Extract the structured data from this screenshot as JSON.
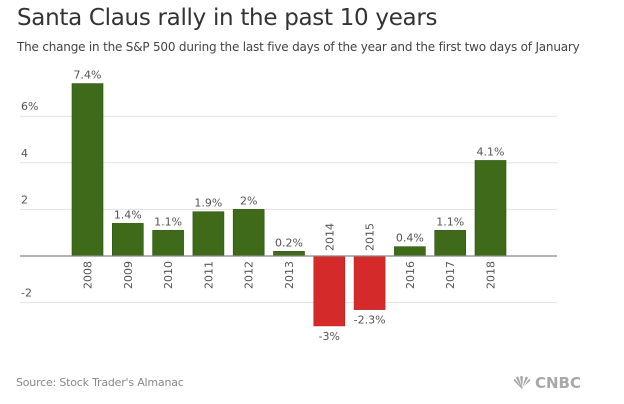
{
  "header": {
    "title": "Santa Claus rally in the past 10 years",
    "subtitle": "The change in the S&P 500 during the last five days of the year and the first two days of January"
  },
  "footer": {
    "source": "Source: Stock Trader's Almanac",
    "logo_text": "CNBC",
    "logo_icon": "nbc-peacock-icon"
  },
  "colors": {
    "positive": "#3f6a1a",
    "negative": "#d42a2a",
    "grid": "#e3e3e3",
    "axis": "#888888"
  },
  "chart_data": {
    "type": "bar",
    "title": "Santa Claus rally in the past 10 years",
    "subtitle": "The change in the S&P 500 during the last five days of the year and the first two days of January",
    "xlabel": "",
    "ylabel": "",
    "categories": [
      "2008",
      "2009",
      "2010",
      "2011",
      "2012",
      "2013",
      "2014",
      "2015",
      "2016",
      "2017",
      "2018"
    ],
    "values": [
      7.4,
      1.4,
      1.1,
      1.9,
      2.0,
      0.2,
      -3.0,
      -2.3,
      0.4,
      1.1,
      4.1
    ],
    "value_labels": [
      "7.4%",
      "1.4%",
      "1.1%",
      "1.9%",
      "2%",
      "0.2%",
      "-3%",
      "-2.3%",
      "0.4%",
      "1.1%",
      "4.1%"
    ],
    "yticks": [
      6,
      4,
      2,
      -2
    ],
    "ytick_labels": [
      "6%",
      "4",
      "2",
      "-2"
    ],
    "ylim": [
      -3.5,
      7.6
    ],
    "grid": true,
    "legend": "none",
    "source": "Source: Stock Trader's Almanac"
  }
}
